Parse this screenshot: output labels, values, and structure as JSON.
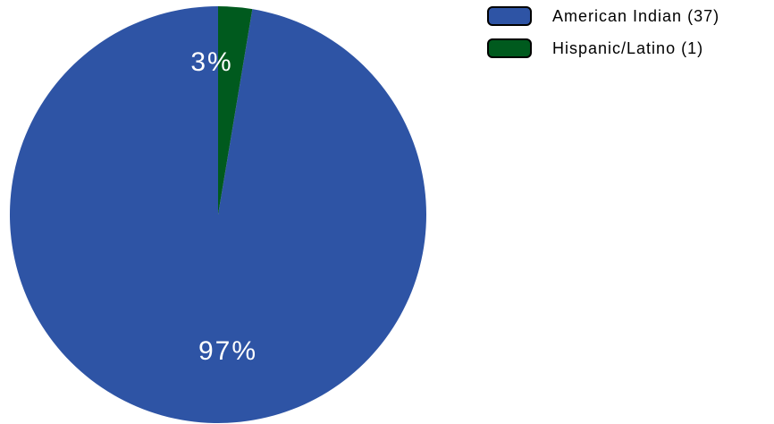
{
  "chart_data": {
    "type": "pie",
    "slices": [
      {
        "name": "American Indian (37)",
        "value": 37,
        "percent_label": "97%",
        "color": "#2E54A5"
      },
      {
        "name": "Hispanic/Latino (1)",
        "value": 1,
        "percent_label": "3%",
        "color": "#005A1E"
      }
    ],
    "start_angle_deg": 0,
    "direction": "counterclockwise",
    "legend_placement": "top-right"
  }
}
